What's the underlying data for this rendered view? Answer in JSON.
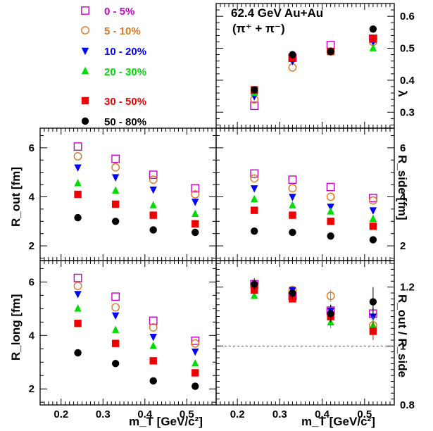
{
  "chart_data": {
    "type": "scatter",
    "title": "62.4 GeV Au+Au",
    "subtitle": "(π⁺ + π⁻)",
    "x": [
      0.24,
      0.33,
      0.42,
      0.52
    ],
    "xlabel": "m_T [GeV/c²]",
    "xlim": [
      0.15,
      0.57
    ],
    "xticks": [
      "0.2",
      "0.3",
      "0.4",
      "0.5"
    ],
    "legend_placement": "top-left",
    "series": [
      {
        "name": "0 - 5%",
        "color": "#cc00cc",
        "marker": "open-square"
      },
      {
        "name": "5 - 10%",
        "color": "#dd7722",
        "marker": "open-circle"
      },
      {
        "name": "10 - 20%",
        "color": "#0000ff",
        "marker": "filled-triangle-down"
      },
      {
        "name": "20 - 30%",
        "color": "#00dd00",
        "marker": "filled-triangle-up"
      },
      {
        "name": "30 - 50%",
        "color": "#ee0000",
        "marker": "filled-square"
      },
      {
        "name": "50 - 80%",
        "color": "#000000",
        "marker": "filled-circle"
      }
    ],
    "panels": [
      {
        "id": "lambda",
        "ylabel": "λ",
        "ylim": [
          0.25,
          0.64
        ],
        "yticks": [
          0.3,
          0.4,
          0.5,
          0.6
        ],
        "values": [
          [
            0.32,
            0.47,
            0.51,
            0.53
          ],
          [
            0.34,
            0.44,
            0.49,
            0.52
          ],
          [
            0.35,
            0.46,
            0.49,
            0.52
          ],
          [
            0.36,
            0.47,
            0.49,
            0.5
          ],
          [
            0.37,
            0.47,
            0.49,
            0.53
          ],
          [
            0.37,
            0.48,
            0.49,
            0.56
          ]
        ]
      },
      {
        "id": "rout",
        "ylabel": "R_out [fm]",
        "ylim": [
          1.4,
          6.8
        ],
        "yticks": [
          2,
          4,
          6
        ],
        "values": [
          [
            6.05,
            5.55,
            4.9,
            4.35
          ],
          [
            5.65,
            5.2,
            4.7,
            4.1
          ],
          [
            5.2,
            4.8,
            4.3,
            3.8
          ],
          [
            4.55,
            4.25,
            3.65,
            3.3
          ],
          [
            4.1,
            3.7,
            3.25,
            2.9
          ],
          [
            3.15,
            3.0,
            2.65,
            2.55
          ]
        ]
      },
      {
        "id": "rside",
        "ylabel": "R_side [fm]",
        "ylim": [
          1.4,
          6.8
        ],
        "yticks": [
          2,
          4,
          6
        ],
        "values": [
          [
            4.95,
            4.7,
            4.4,
            3.95
          ],
          [
            4.75,
            4.35,
            4.0,
            3.85
          ],
          [
            4.35,
            4.0,
            3.6,
            3.45
          ],
          [
            3.9,
            3.65,
            3.4,
            3.1
          ],
          [
            3.45,
            3.25,
            3.0,
            2.8
          ],
          [
            2.6,
            2.55,
            2.4,
            2.25
          ]
        ]
      },
      {
        "id": "rlong",
        "ylabel": "R_long [fm]",
        "ylim": [
          1.4,
          6.8
        ],
        "yticks": [
          2,
          4,
          6
        ],
        "values": [
          [
            6.15,
            5.45,
            4.55,
            3.8
          ],
          [
            5.85,
            5.05,
            4.3,
            3.7
          ],
          [
            5.55,
            4.75,
            3.95,
            3.4
          ],
          [
            5.0,
            4.2,
            3.6,
            2.95
          ],
          [
            4.45,
            3.7,
            3.05,
            2.6
          ],
          [
            3.35,
            2.95,
            2.3,
            2.1
          ]
        ]
      },
      {
        "id": "ratio",
        "ylabel": "R_out / R_side",
        "ylim": [
          0.8,
          1.29
        ],
        "yticks": [
          0.8,
          1.0,
          1.2
        ],
        "reference_line": 1.0,
        "values": [
          [
            1.21,
            1.17,
            1.12,
            1.11
          ],
          [
            1.2,
            1.19,
            1.17,
            1.07
          ],
          [
            1.2,
            1.19,
            1.12,
            1.1
          ],
          [
            1.17,
            1.17,
            1.08,
            1.07
          ],
          [
            1.19,
            1.16,
            1.1,
            1.05
          ],
          [
            1.21,
            1.18,
            1.11,
            1.15
          ]
        ],
        "errors": [
          [
            0.01,
            0.01,
            0.02,
            0.02
          ],
          [
            0.01,
            0.01,
            0.02,
            0.03
          ],
          [
            0.01,
            0.01,
            0.02,
            0.03
          ],
          [
            0.01,
            0.01,
            0.02,
            0.03
          ],
          [
            0.01,
            0.01,
            0.02,
            0.03
          ],
          [
            0.02,
            0.02,
            0.03,
            0.05
          ]
        ]
      }
    ]
  }
}
